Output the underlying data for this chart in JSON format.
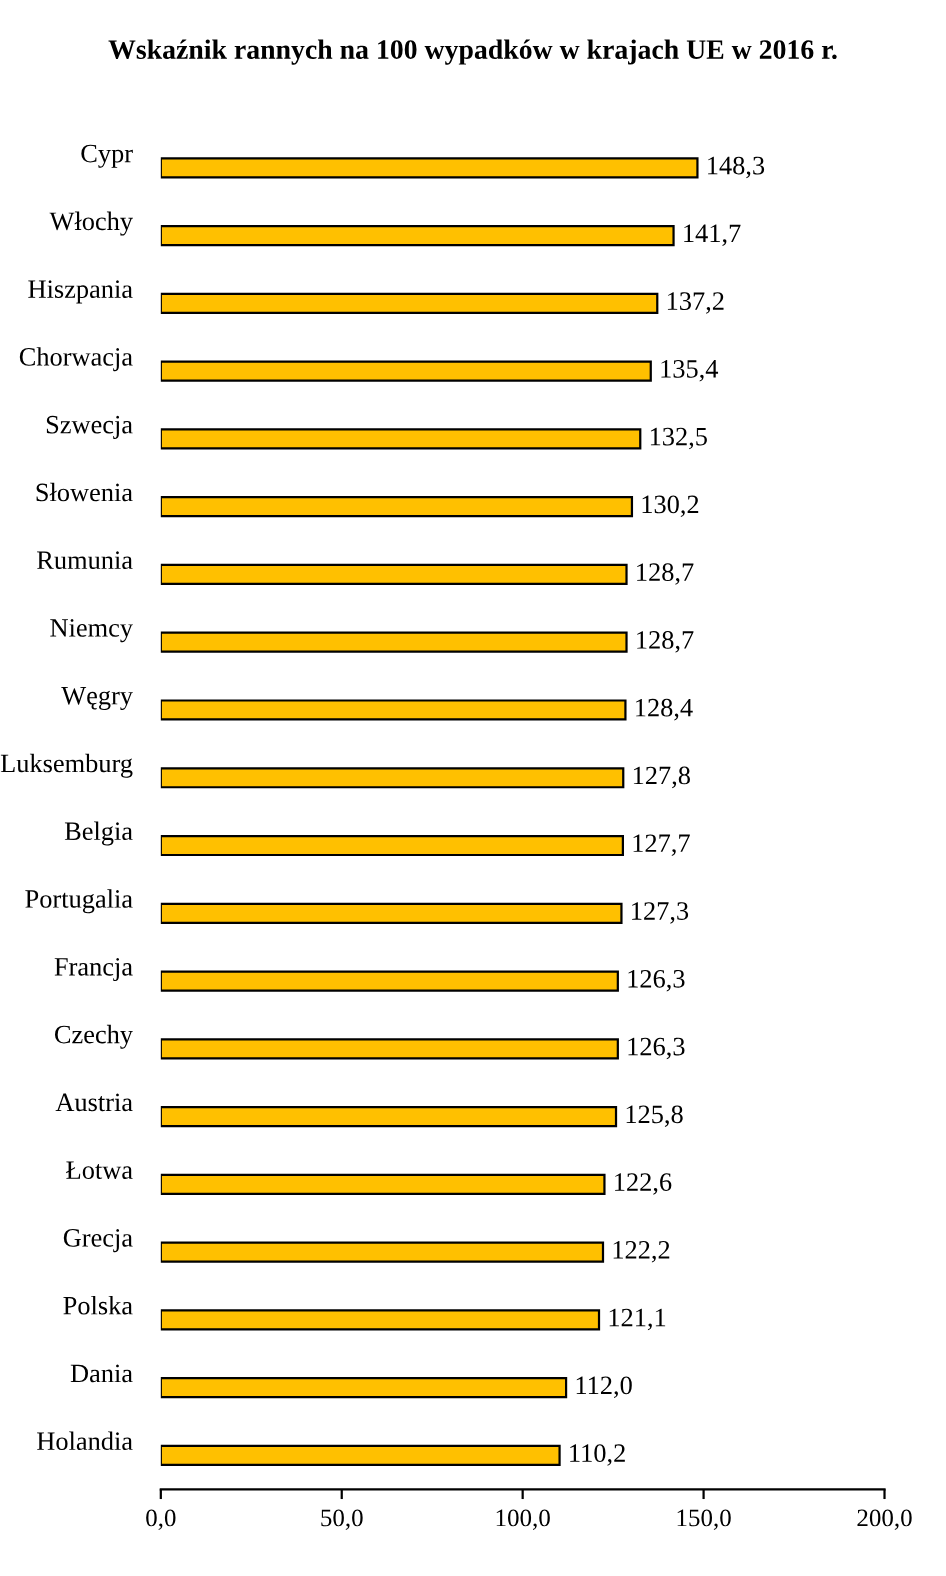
{
  "chart_data": {
    "type": "bar",
    "orientation": "horizontal",
    "title": "Wskaźnik rannych na 100 wypadków w krajach UE w 2016 r.",
    "categories": [
      "Cypr",
      "Włochy",
      "Hiszpania",
      "Chorwacja",
      "Szwecja",
      "Słowenia",
      "Rumunia",
      "Niemcy",
      "Węgry",
      "Luksemburg",
      "Belgia",
      "Portugalia",
      "Francja",
      "Czechy",
      "Austria",
      "Łotwa",
      "Grecja",
      "Polska",
      "Dania",
      "Holandia"
    ],
    "values": [
      148.3,
      141.7,
      137.2,
      135.4,
      132.5,
      130.2,
      128.7,
      128.7,
      128.4,
      127.8,
      127.7,
      127.3,
      126.3,
      126.3,
      125.8,
      122.6,
      122.2,
      121.1,
      112.0,
      110.2
    ],
    "value_labels": [
      "148,3",
      "141,7",
      "137,2",
      "135,4",
      "132,5",
      "130,2",
      "128,7",
      "128,7",
      "128,4",
      "127,8",
      "127,7",
      "127,3",
      "126,3",
      "126,3",
      "125,8",
      "122,6",
      "122,2",
      "121,1",
      "112,0",
      "110,2"
    ],
    "color": "#ffc000",
    "xlim": [
      0,
      200
    ],
    "xticks": [
      {
        "value": 0,
        "label": "0,0"
      },
      {
        "value": 50,
        "label": "50,0"
      },
      {
        "value": 100,
        "label": "100,0"
      },
      {
        "value": 150,
        "label": "150,0"
      },
      {
        "value": 200,
        "label": "200,0"
      }
    ],
    "grid": false,
    "legend": false
  }
}
